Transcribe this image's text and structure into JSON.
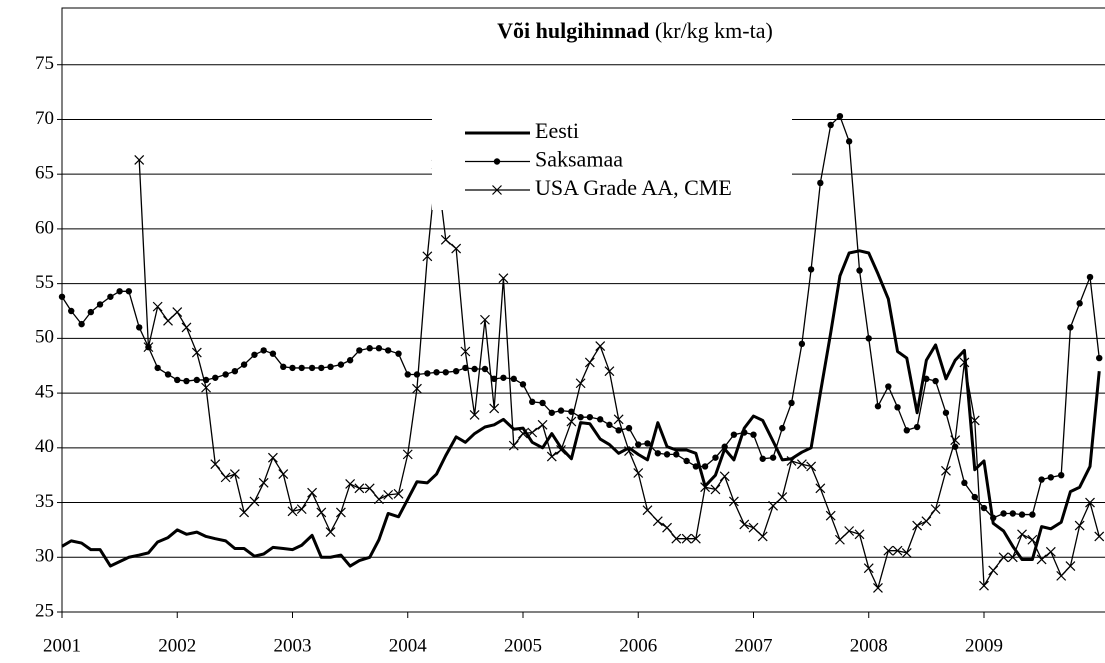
{
  "chart_data": {
    "type": "line",
    "title": "Või hulgihinnad",
    "subtitle": "(kr/kg km-ta)",
    "x": [
      2001.0,
      2001.08,
      2001.17,
      2001.25,
      2001.33,
      2001.42,
      2001.5,
      2001.58,
      2001.67,
      2001.75,
      2001.83,
      2001.92,
      2002.0,
      2002.08,
      2002.17,
      2002.25,
      2002.33,
      2002.42,
      2002.5,
      2002.58,
      2002.67,
      2002.75,
      2002.83,
      2002.92,
      2003.0,
      2003.08,
      2003.17,
      2003.25,
      2003.33,
      2003.42,
      2003.5,
      2003.58,
      2003.67,
      2003.75,
      2003.83,
      2003.92,
      2004.0,
      2004.08,
      2004.17,
      2004.25,
      2004.33,
      2004.42,
      2004.5,
      2004.58,
      2004.67,
      2004.75,
      2004.83,
      2004.92,
      2005.0,
      2005.08,
      2005.17,
      2005.25,
      2005.33,
      2005.42,
      2005.5,
      2005.58,
      2005.67,
      2005.75,
      2005.83,
      2005.92,
      2006.0,
      2006.08,
      2006.17,
      2006.25,
      2006.33,
      2006.42,
      2006.5,
      2006.58,
      2006.67,
      2006.75,
      2006.83,
      2006.92,
      2007.0,
      2007.08,
      2007.17,
      2007.25,
      2007.33,
      2007.42,
      2007.5,
      2007.58,
      2007.67,
      2007.75,
      2007.83,
      2007.92,
      2008.0,
      2008.08,
      2008.17,
      2008.25,
      2008.33,
      2008.42,
      2008.5,
      2008.58,
      2008.67,
      2008.75,
      2008.83,
      2008.92,
      2009.0,
      2009.08,
      2009.17,
      2009.25,
      2009.33,
      2009.42,
      2009.5,
      2009.58,
      2009.67,
      2009.75,
      2009.83,
      2009.92,
      2010.0
    ],
    "series": [
      {
        "name": "Eesti",
        "color": "#000000",
        "marker": "none",
        "width": 3,
        "values": [
          31,
          31.5,
          31.3,
          30.7,
          30.7,
          29.2,
          29.6,
          30,
          30.2,
          30.4,
          31.4,
          31.8,
          32.5,
          32.1,
          32.3,
          31.9,
          31.7,
          31.5,
          30.8,
          30.8,
          30.1,
          30.3,
          30.9,
          30.8,
          30.7,
          31.1,
          32,
          30,
          30,
          30.2,
          29.2,
          29.7,
          30,
          31.6,
          34,
          33.7,
          35.3,
          36.9,
          36.8,
          37.6,
          39.3,
          41,
          40.5,
          41.3,
          41.9,
          42.1,
          42.6,
          41.7,
          41.8,
          40.5,
          40,
          41.3,
          40,
          39,
          42.3,
          42.2,
          40.8,
          40.3,
          39.5,
          40,
          39.4,
          38.9,
          42.3,
          40.1,
          39.8,
          39.8,
          39.5,
          36.5,
          37.5,
          39.9,
          38.9,
          41.8,
          42.9,
          42.5,
          40.6,
          38.9,
          39,
          39.6,
          40,
          45,
          50.5,
          55.7,
          57.8,
          58,
          57.8,
          55.9,
          53.6,
          48.8,
          48.2,
          43.2,
          48,
          49.4,
          46.3,
          48,
          48.9,
          38,
          38.8,
          33.1,
          32.4,
          31,
          29.8,
          29.8,
          32.8,
          32.6,
          33.2,
          36,
          36.4,
          38.3,
          47
        ]
      },
      {
        "name": "Saksamaa",
        "color": "#000000",
        "marker": "dot",
        "width": 1.3,
        "values": [
          53.8,
          52.5,
          51.3,
          52.4,
          53.1,
          53.8,
          54.3,
          54.3,
          51,
          49.2,
          47.3,
          46.7,
          46.2,
          46.1,
          46.2,
          46.2,
          46.4,
          46.7,
          47,
          47.6,
          48.5,
          48.9,
          48.6,
          47.4,
          47.3,
          47.3,
          47.3,
          47.3,
          47.4,
          47.6,
          48,
          48.9,
          49.1,
          49.1,
          48.9,
          48.6,
          46.7,
          46.7,
          46.8,
          46.9,
          46.9,
          47,
          47.3,
          47.2,
          47.2,
          46.3,
          46.4,
          46.3,
          45.8,
          44.2,
          44.1,
          43.2,
          43.4,
          43.3,
          42.8,
          42.8,
          42.6,
          42.1,
          41.6,
          41.8,
          40.3,
          40.4,
          39.5,
          39.4,
          39.4,
          38.8,
          38.3,
          38.3,
          39.1,
          40.1,
          41.2,
          41.4,
          41.2,
          39,
          39.1,
          41.8,
          44.1,
          49.5,
          56.3,
          64.2,
          69.5,
          70.3,
          68,
          56.2,
          50,
          43.8,
          45.6,
          43.7,
          41.6,
          41.9,
          46.3,
          46.1,
          43.2,
          40.1,
          36.8,
          35.5,
          34.5,
          33.6,
          34,
          34,
          33.9,
          33.9,
          37.1,
          37.3,
          37.5,
          51,
          53.2,
          55.6,
          48.2
        ]
      },
      {
        "name": "USA Grade AA, CME",
        "color": "#000000",
        "marker": "cross",
        "width": 1.3,
        "values": [
          null,
          null,
          null,
          null,
          null,
          null,
          null,
          null,
          66.3,
          49.2,
          52.9,
          51.6,
          52.4,
          51,
          48.7,
          45.5,
          38.5,
          37.3,
          37.6,
          34.1,
          35.1,
          36.8,
          39.1,
          37.6,
          34.2,
          34.4,
          35.9,
          34.1,
          32.3,
          34.1,
          36.7,
          36.3,
          36.3,
          35.3,
          35.7,
          35.8,
          39.4,
          45.4,
          57.5,
          65.9,
          59,
          58.2,
          48.8,
          43,
          51.7,
          43.6,
          55.5,
          40.2,
          41.3,
          41.4,
          42.1,
          39.2,
          39.8,
          42.4,
          45.9,
          47.8,
          49.3,
          47,
          42.6,
          39.7,
          37.7,
          34.3,
          33.3,
          32.7,
          31.7,
          31.7,
          31.7,
          36.4,
          36.2,
          37.4,
          35.1,
          33,
          32.7,
          31.9,
          34.7,
          35.5,
          38.8,
          38.5,
          38.3,
          36.3,
          33.8,
          31.6,
          32.4,
          32.1,
          29,
          27.2,
          30.6,
          30.6,
          30.4,
          32.9,
          33.3,
          34.4,
          37.9,
          40.7,
          47.8,
          42.5,
          27.4,
          28.8,
          30,
          30,
          32.1,
          31.6,
          29.8,
          30.5,
          28.3,
          29.2,
          32.9,
          35,
          31.9
        ]
      }
    ],
    "xlim": [
      2001,
      2010.05
    ],
    "xticks": [
      2001,
      2002,
      2003,
      2004,
      2005,
      2006,
      2007,
      2008,
      2009
    ],
    "ylim": [
      25,
      80
    ],
    "yticks": [
      25,
      30,
      35,
      40,
      45,
      50,
      55,
      60,
      65,
      70,
      75
    ],
    "grid": true,
    "legend": "top"
  }
}
